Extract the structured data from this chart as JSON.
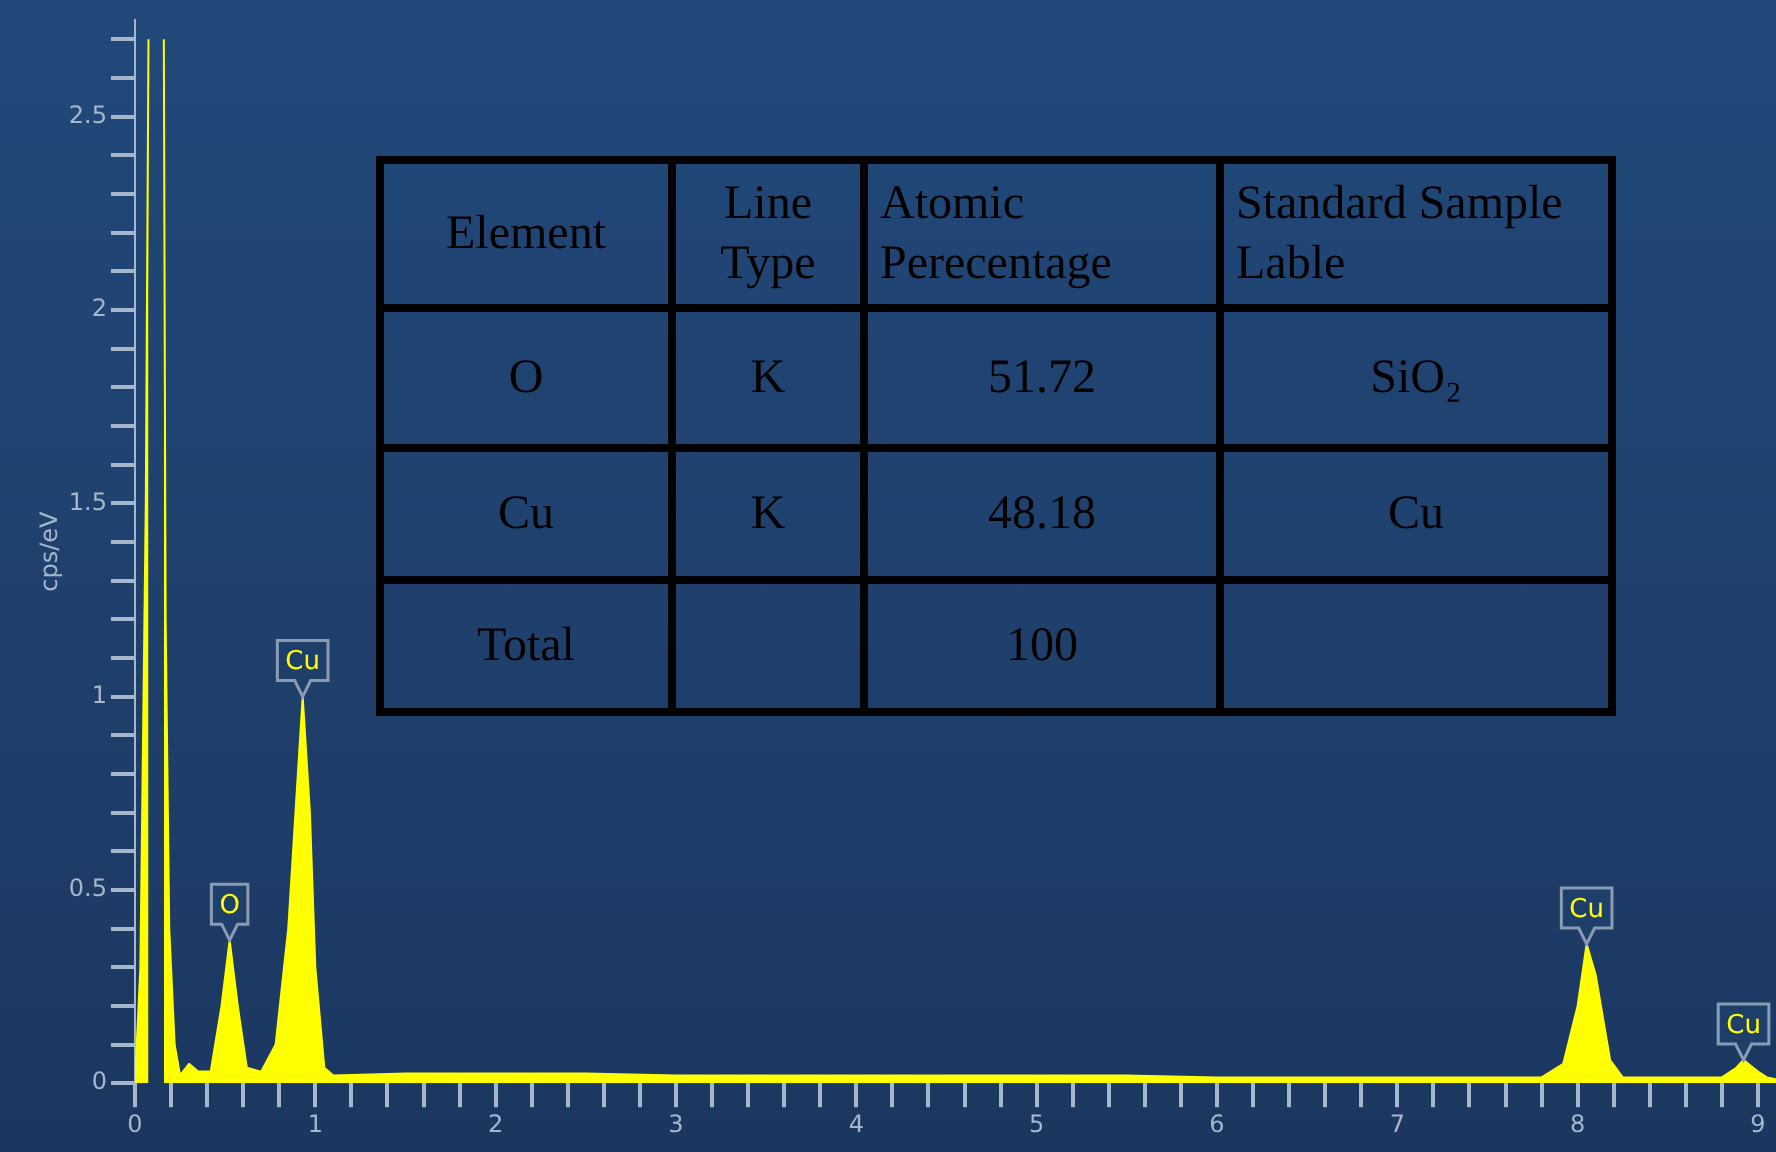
{
  "chart_data": {
    "type": "area",
    "ylabel": "cps/eV",
    "color": "#ffff00",
    "x": [
      0,
      0.03,
      0.06,
      0.075,
      0.08,
      0.15,
      0.16,
      0.17,
      0.19,
      0.22,
      0.25,
      0.3,
      0.35,
      0.42,
      0.48,
      0.525,
      0.57,
      0.62,
      0.7,
      0.78,
      0.85,
      0.93,
      0.97,
      1.0,
      1.05,
      1.1,
      1.5,
      2.0,
      2.5,
      3.0,
      3.5,
      4.0,
      4.5,
      5.0,
      5.5,
      6.0,
      6.5,
      7.0,
      7.5,
      7.8,
      7.92,
      8.0,
      8.05,
      8.1,
      8.18,
      8.25,
      8.5,
      8.8,
      8.88,
      8.92,
      9.0,
      9.05,
      9.1
    ],
    "values": [
      0,
      0.3,
      1.5,
      2.7,
      null,
      null,
      2.7,
      1.2,
      0.4,
      0.1,
      0.02,
      0.05,
      0.03,
      0.03,
      0.2,
      0.37,
      0.2,
      0.04,
      0.03,
      0.1,
      0.4,
      1.0,
      0.7,
      0.3,
      0.04,
      0.02,
      0.025,
      0.025,
      0.025,
      0.02,
      0.02,
      0.02,
      0.02,
      0.02,
      0.02,
      0.015,
      0.015,
      0.015,
      0.015,
      0.015,
      0.05,
      0.2,
      0.36,
      0.28,
      0.06,
      0.015,
      0.015,
      0.015,
      0.04,
      0.06,
      0.03,
      0.015,
      0.01
    ],
    "xlim": [
      0,
      9.1
    ],
    "ylim": [
      0,
      2.75
    ],
    "xticks": [
      0,
      {
        "value": 0.2,
        "label": null
      },
      {
        "value": 0.4,
        "label": null
      },
      {
        "value": 0.6,
        "label": null
      },
      {
        "value": 0.8,
        "label": null
      },
      1,
      {
        "value": 1.2,
        "label": null
      },
      {
        "value": 1.4,
        "label": null
      },
      {
        "value": 1.6,
        "label": null
      },
      {
        "value": 1.8,
        "label": null
      },
      2,
      {
        "value": 2.2,
        "label": null
      },
      {
        "value": 2.4,
        "label": null
      },
      {
        "value": 2.6,
        "label": null
      },
      {
        "value": 2.8,
        "label": null
      },
      3,
      {
        "value": 3.2,
        "label": null
      },
      {
        "value": 3.4,
        "label": null
      },
      {
        "value": 3.6,
        "label": null
      },
      {
        "value": 3.8,
        "label": null
      },
      4,
      {
        "value": 4.2,
        "label": null
      },
      {
        "value": 4.4,
        "label": null
      },
      {
        "value": 4.6,
        "label": null
      },
      {
        "value": 4.8,
        "label": null
      },
      5,
      {
        "value": 5.2,
        "label": null
      },
      {
        "value": 5.4,
        "label": null
      },
      {
        "value": 5.6,
        "label": null
      },
      {
        "value": 5.8,
        "label": null
      },
      6,
      {
        "value": 6.2,
        "label": null
      },
      {
        "value": 6.4,
        "label": null
      },
      {
        "value": 6.6,
        "label": null
      },
      {
        "value": 6.8,
        "label": null
      },
      7,
      {
        "value": 7.2,
        "label": null
      },
      {
        "value": 7.4,
        "label": null
      },
      {
        "value": 7.6,
        "label": null
      },
      {
        "value": 7.8,
        "label": null
      },
      8,
      {
        "value": 8.2,
        "label": null
      },
      {
        "value": 8.4,
        "label": null
      },
      {
        "value": 8.6,
        "label": null
      },
      {
        "value": 8.8,
        "label": null
      },
      9
    ],
    "yticks": [
      0,
      {
        "value": 0.1,
        "label": null
      },
      {
        "value": 0.2,
        "label": null
      },
      {
        "value": 0.3,
        "label": null
      },
      {
        "value": 0.4,
        "label": null
      },
      0.5,
      {
        "value": 0.6,
        "label": null
      },
      {
        "value": 0.7,
        "label": null
      },
      {
        "value": 0.8,
        "label": null
      },
      {
        "value": 0.9,
        "label": null
      },
      1,
      {
        "value": 1.1,
        "label": null
      },
      {
        "value": 1.2,
        "label": null
      },
      {
        "value": 1.3,
        "label": null
      },
      {
        "value": 1.4,
        "label": null
      },
      1.5,
      {
        "value": 1.6,
        "label": null
      },
      {
        "value": 1.7,
        "label": null
      },
      {
        "value": 1.8,
        "label": null
      },
      {
        "value": 1.9,
        "label": null
      },
      2,
      {
        "value": 2.1,
        "label": null
      },
      {
        "value": 2.2,
        "label": null
      },
      {
        "value": 2.3,
        "label": null
      },
      {
        "value": 2.4,
        "label": null
      },
      2.5,
      {
        "value": 2.6,
        "label": null
      },
      {
        "value": 2.7,
        "label": null
      }
    ],
    "annotations": [
      {
        "text": "O",
        "x": 0.525,
        "y": 0.37
      },
      {
        "text": "Cu",
        "x": 0.93,
        "y": 1.0
      },
      {
        "text": "Cu",
        "x": 8.05,
        "y": 0.36
      },
      {
        "text": "Cu",
        "x": 8.92,
        "y": 0.06
      },
      "Element",
      "Line Type",
      "Atomic Perecentage",
      "Standard Sample Lable",
      "O",
      "K",
      "51.72",
      "SiO₂",
      "Cu",
      "K",
      "48.18",
      "Cu",
      "Total",
      "100"
    ]
  }
}
